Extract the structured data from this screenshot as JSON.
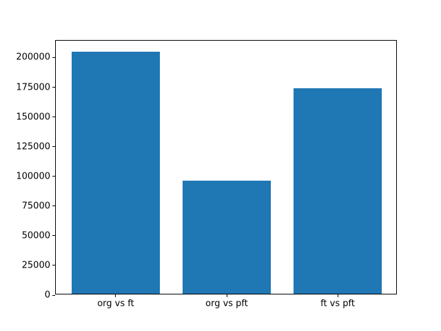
{
  "chart_data": {
    "type": "bar",
    "categories": [
      "org vs ft",
      "org vs pft",
      "ft vs pft"
    ],
    "values": [
      204000,
      95000,
      173000
    ],
    "title": "",
    "xlabel": "",
    "ylabel": "",
    "ylim": [
      0,
      214200
    ],
    "y_ticks": [
      0,
      25000,
      50000,
      75000,
      100000,
      125000,
      150000,
      175000,
      200000
    ],
    "bar_color": "#1f77b4",
    "spine_color": "#000000",
    "text_color": "#000000",
    "background_color": "#ffffff",
    "grid": false,
    "legend_position": "none"
  }
}
